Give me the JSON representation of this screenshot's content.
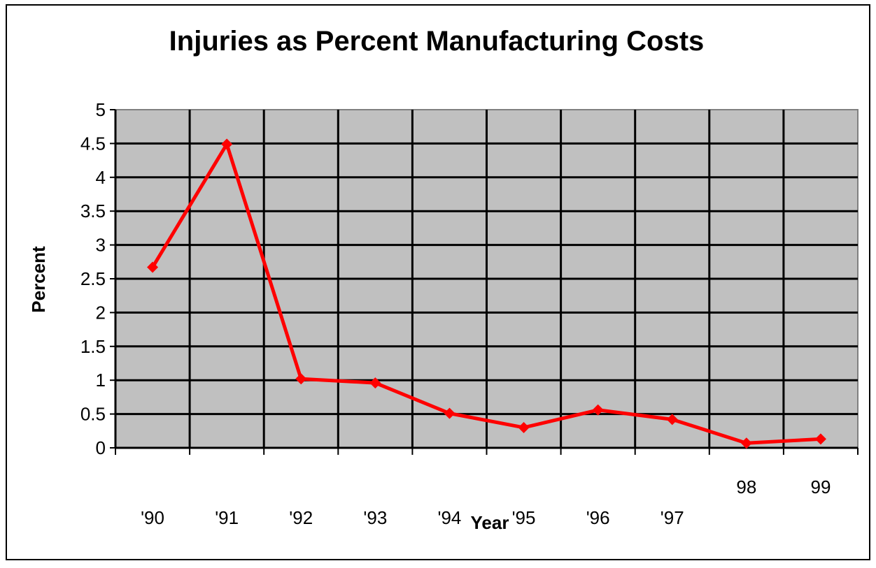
{
  "chart_data": {
    "type": "line",
    "title": "Injuries as Percent Manufacturing Costs",
    "xlabel": "Year",
    "ylabel": "Percent",
    "categories": [
      "'90",
      "'91",
      "'92",
      "'93",
      "'94",
      "'95",
      "'96",
      "'97",
      "98",
      "99"
    ],
    "series": [
      {
        "name": "Percent",
        "values": [
          2.67,
          4.49,
          1.02,
          0.96,
          0.51,
          0.3,
          0.56,
          0.42,
          0.07,
          0.13
        ],
        "color": "#ff0000"
      }
    ],
    "ylim": [
      0,
      5
    ],
    "yticks": [
      "0",
      "0.5",
      "1",
      "1.5",
      "2",
      "2.5",
      "3",
      "3.5",
      "4",
      "4.5",
      "5"
    ],
    "grid": true,
    "plot_background": "#c0c0c0",
    "legend": "none"
  }
}
